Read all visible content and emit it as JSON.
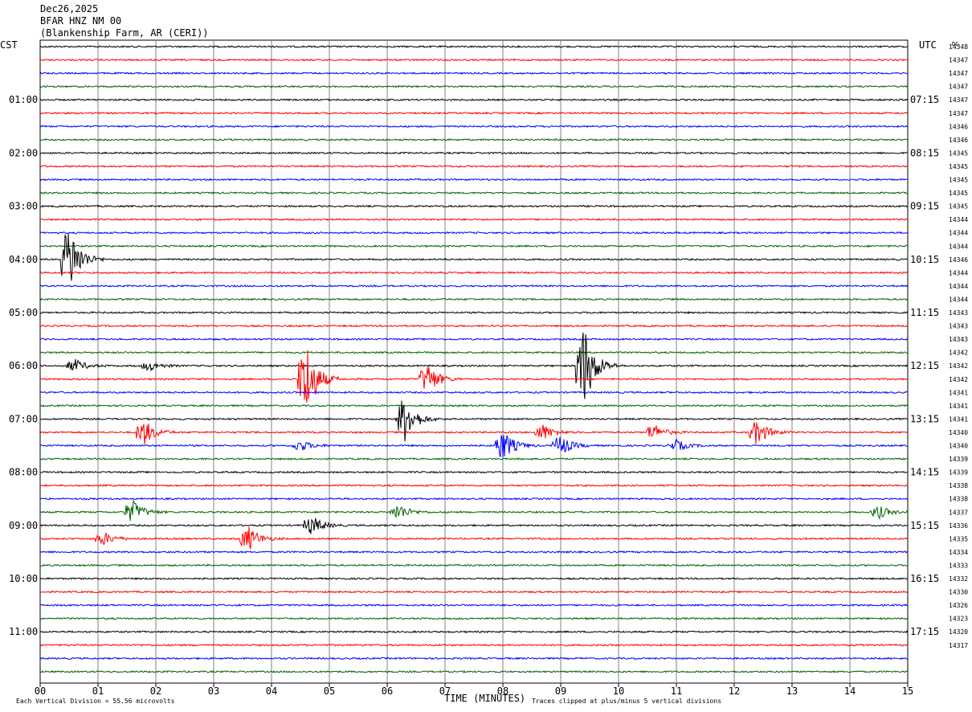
{
  "header": {
    "date": "Dec26,2025",
    "station": "BFAR HNZ NM 00",
    "location": "(Blankenship Farm, AR (CERI))"
  },
  "left_tz": "CST",
  "right_tz": "UTC",
  "dc_label": "DC",
  "footer": {
    "scale_note": "Each Vertical Division =   55.56 microvolts",
    "x_title": "TIME (MINUTES)",
    "clip_note": "Traces clipped at plus/minus 5 vertical divisions"
  },
  "colors": {
    "trace_cycle": [
      "#000000",
      "#ff0000",
      "#0000ff",
      "#006400"
    ],
    "grid": "#808080"
  },
  "chart_data": {
    "type": "line",
    "title": "BFAR HNZ NM 00",
    "xlabel": "TIME (MINUTES)",
    "xlim": [
      0,
      15
    ],
    "x_ticks": [
      "00",
      "01",
      "02",
      "03",
      "04",
      "05",
      "06",
      "07",
      "08",
      "09",
      "10",
      "11",
      "12",
      "13",
      "14",
      "15"
    ],
    "rows": 48,
    "row_interval_minutes": 15,
    "left_time_labels": [
      "01:00",
      "02:00",
      "03:00",
      "04:00",
      "05:00",
      "06:00",
      "07:00",
      "08:00",
      "09:00",
      "10:00",
      "11:00"
    ],
    "right_time_labels": [
      "07:15",
      "08:15",
      "09:15",
      "10:15",
      "11:15",
      "12:15",
      "13:15",
      "14:15",
      "15:15",
      "16:15",
      "17:15"
    ],
    "dc_values": [
      "14348",
      "14347",
      "14347",
      "14347",
      "14347",
      "14347",
      "14346",
      "14346",
      "14345",
      "14345",
      "14345",
      "14345",
      "14345",
      "14344",
      "14344",
      "14344",
      "14346",
      "14344",
      "14344",
      "14344",
      "14343",
      "14343",
      "14343",
      "14342",
      "14342",
      "14342",
      "14341",
      "14341",
      "14341",
      "14340",
      "14340",
      "14339",
      "14339",
      "14338",
      "14338",
      "14337",
      "14336",
      "14335",
      "14334",
      "14333",
      "14332",
      "14330",
      "14326",
      "14323",
      "14320",
      "14317"
    ],
    "events": [
      {
        "row": 16,
        "minute": 0.5,
        "amplitude": 4.5
      },
      {
        "row": 24,
        "minute": 0.6,
        "amplitude": 0.8
      },
      {
        "row": 24,
        "minute": 1.9,
        "amplitude": 0.6
      },
      {
        "row": 24,
        "minute": 9.4,
        "amplitude": 5.5
      },
      {
        "row": 25,
        "minute": 4.6,
        "amplitude": 5.0
      },
      {
        "row": 25,
        "minute": 6.7,
        "amplitude": 2.0
      },
      {
        "row": 28,
        "minute": 6.3,
        "amplitude": 3.0
      },
      {
        "row": 29,
        "minute": 1.8,
        "amplitude": 1.6
      },
      {
        "row": 29,
        "minute": 8.7,
        "amplitude": 1.0
      },
      {
        "row": 29,
        "minute": 10.6,
        "amplitude": 1.0
      },
      {
        "row": 29,
        "minute": 12.4,
        "amplitude": 1.6
      },
      {
        "row": 30,
        "minute": 4.5,
        "amplitude": 0.7
      },
      {
        "row": 30,
        "minute": 8.0,
        "amplitude": 2.0
      },
      {
        "row": 30,
        "minute": 9.0,
        "amplitude": 1.3
      },
      {
        "row": 30,
        "minute": 11.0,
        "amplitude": 0.7
      },
      {
        "row": 35,
        "minute": 1.6,
        "amplitude": 1.5
      },
      {
        "row": 35,
        "minute": 6.2,
        "amplitude": 1.0
      },
      {
        "row": 35,
        "minute": 14.5,
        "amplitude": 0.8
      },
      {
        "row": 36,
        "minute": 4.7,
        "amplitude": 1.2
      },
      {
        "row": 37,
        "minute": 3.6,
        "amplitude": 1.6
      },
      {
        "row": 37,
        "minute": 1.1,
        "amplitude": 0.8
      }
    ]
  }
}
